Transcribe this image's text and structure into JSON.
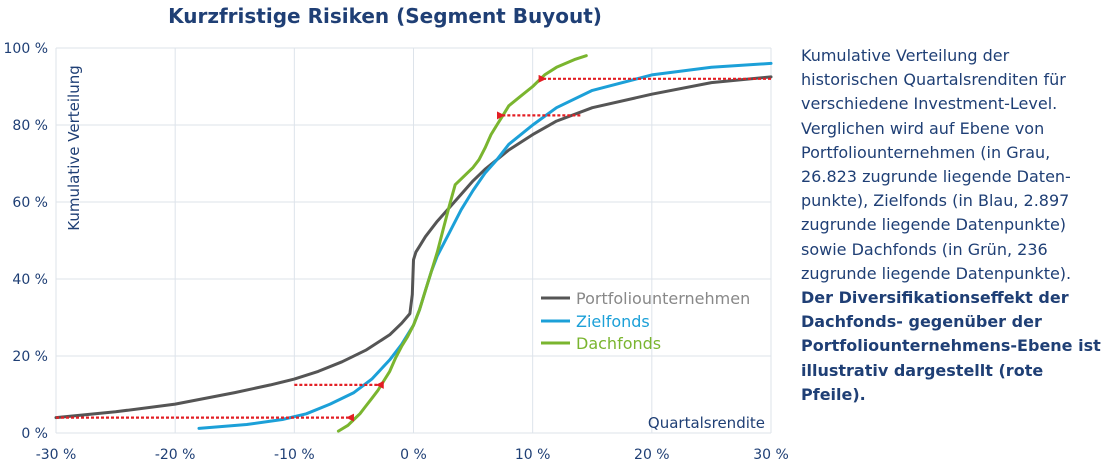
{
  "chart_data": {
    "type": "line",
    "title": "Kurzfristige Risiken (Segment Buyout)",
    "xlabel": "Quartalsrendite",
    "ylabel": "Kumulative Verteilung",
    "xlim": [
      -30,
      30
    ],
    "ylim": [
      0,
      100
    ],
    "x_ticks": [
      -30,
      -20,
      -10,
      0,
      10,
      20,
      30
    ],
    "x_tick_labels": [
      "-30 %",
      "-20 %",
      "-10 %",
      "0 %",
      "10 %",
      "20 %",
      "30 %"
    ],
    "y_ticks": [
      0,
      20,
      40,
      60,
      80,
      100
    ],
    "y_tick_labels": [
      "0 %",
      "20 %",
      "40 %",
      "60 %",
      "80 %",
      "100 %"
    ],
    "grid": true,
    "legend_position": "bottom-right",
    "series": [
      {
        "name": "Portfoliounternehmen",
        "color": "#555555",
        "x": [
          -30,
          -25,
          -20,
          -15,
          -12,
          -10,
          -8,
          -6,
          -4,
          -2,
          -1,
          -0.3,
          -0.1,
          0,
          0.2,
          0.5,
          1,
          2,
          3,
          4,
          5,
          6,
          7,
          8,
          10,
          12,
          15,
          20,
          25,
          30
        ],
        "y": [
          4,
          5.5,
          7.5,
          10.5,
          12.5,
          14,
          16,
          18.5,
          21.5,
          25.5,
          28.5,
          31,
          36,
          45,
          47,
          48.5,
          51,
          55,
          58.5,
          62,
          65.5,
          68.5,
          71,
          73.5,
          77.5,
          81,
          84.5,
          88,
          91,
          92.5
        ]
      },
      {
        "name": "Zielfonds",
        "color": "#1ca0d8",
        "x": [
          -18,
          -14,
          -11,
          -9,
          -7,
          -5,
          -3.5,
          -2,
          -1,
          0,
          0.5,
          1,
          1.5,
          2,
          3,
          4,
          5,
          6,
          7,
          8,
          10,
          12,
          15,
          20,
          25,
          30
        ],
        "y": [
          1.2,
          2.2,
          3.5,
          5,
          7.5,
          10.5,
          14,
          19,
          23,
          28,
          32,
          37,
          42,
          46,
          52,
          58,
          63,
          67.5,
          71,
          75,
          80,
          84.5,
          89,
          93,
          95,
          96
        ]
      },
      {
        "name": "Dachfonds",
        "color": "#7ab52f",
        "x": [
          -6.3,
          -5.5,
          -5,
          -4.5,
          -4,
          -3.5,
          -3,
          -2.5,
          -2,
          -1.5,
          -1,
          -0.5,
          0,
          0.5,
          1,
          1.5,
          2,
          2.5,
          3,
          3.5,
          4,
          5,
          5.5,
          6,
          6.5,
          7,
          7.5,
          8,
          9,
          10,
          11,
          12,
          13.5,
          14.5
        ],
        "y": [
          0.5,
          2,
          3.5,
          5,
          7,
          9,
          11,
          13.5,
          16,
          19.5,
          22.5,
          25,
          28,
          32,
          37,
          42,
          47,
          53,
          59,
          64.5,
          66,
          69,
          71,
          74,
          77.5,
          80,
          82.5,
          85,
          87.5,
          90,
          93,
          95,
          97,
          98
        ]
      }
    ],
    "annotations": {
      "arrows_color": "#e31e24",
      "arrows": [
        {
          "from": [
            -30,
            4
          ],
          "to": [
            -5.5,
            4
          ]
        },
        {
          "from": [
            -10,
            12.5
          ],
          "to": [
            -3,
            12.5
          ]
        },
        {
          "from": [
            14,
            82.5
          ],
          "to": [
            7.5,
            82.5
          ]
        },
        {
          "from": [
            30,
            92
          ],
          "to": [
            11,
            92
          ]
        }
      ]
    }
  },
  "caption": {
    "normal": "Kumulative Verteilung der historischen Quartalsrenditen für verschiedene Investment-Level. Verglichen wird auf Ebene von Portfoliounternehmen (in Grau, 26.823 zugrunde liegende Daten-punkte), Zielfonds (in Blau, 2.897 zugrunde liegende Datenpunkte) sowie Dachfonds (in Grün, 236 zugrunde liegende Datenpunkte).",
    "bold": "Der Diversifikationseffekt der Dachfonds- gegenüber der Portfoliounternehmens-Ebene ist illustrativ dargestellt (rote Pfeile)."
  }
}
